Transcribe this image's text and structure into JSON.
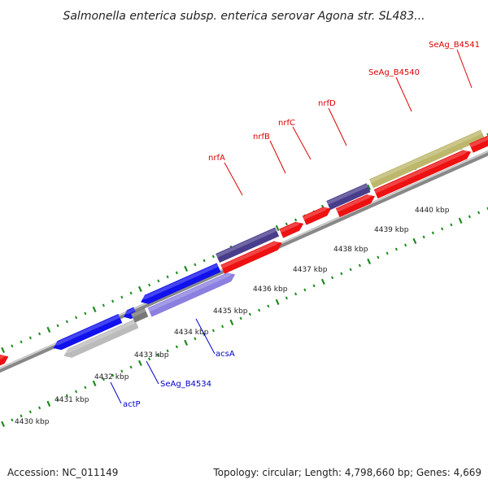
{
  "title": "Salmonella enterica subsp. enterica serovar Agona str. SL483...",
  "footer": {
    "accession": "Accession: NC_011149",
    "stats": "Topology: circular; Length: 4,798,660 bp; Genes: 4,669"
  },
  "colors": {
    "cds": "#ee1111",
    "trna_like_purple": "#483d8b",
    "blue_gene": "#1111ee",
    "light_purple": "#8b7fe0",
    "olive": "#bdb76b",
    "green": "#6b8e23",
    "gray": "#bbbbbb",
    "ticks": "#1e8a1e",
    "ring": "#888888",
    "label_forward": "#dd0000",
    "label_reverse": "#0000cc"
  },
  "scale_labels": [
    "4430 kbp",
    "4431 kbp",
    "4432 kbp",
    "4433 kbp",
    "4434 kbp",
    "4435 kbp",
    "4436 kbp",
    "4437 kbp",
    "4438 kbp",
    "4439 kbp",
    "4440 kbp"
  ],
  "gene_labels": {
    "forward": [
      "nrfA",
      "nrfB",
      "nrfC",
      "nrfD",
      "SeAg_B4540",
      "SeAg_B4541"
    ],
    "reverse": [
      "actP",
      "SeAg_B4534",
      "acsA"
    ]
  }
}
